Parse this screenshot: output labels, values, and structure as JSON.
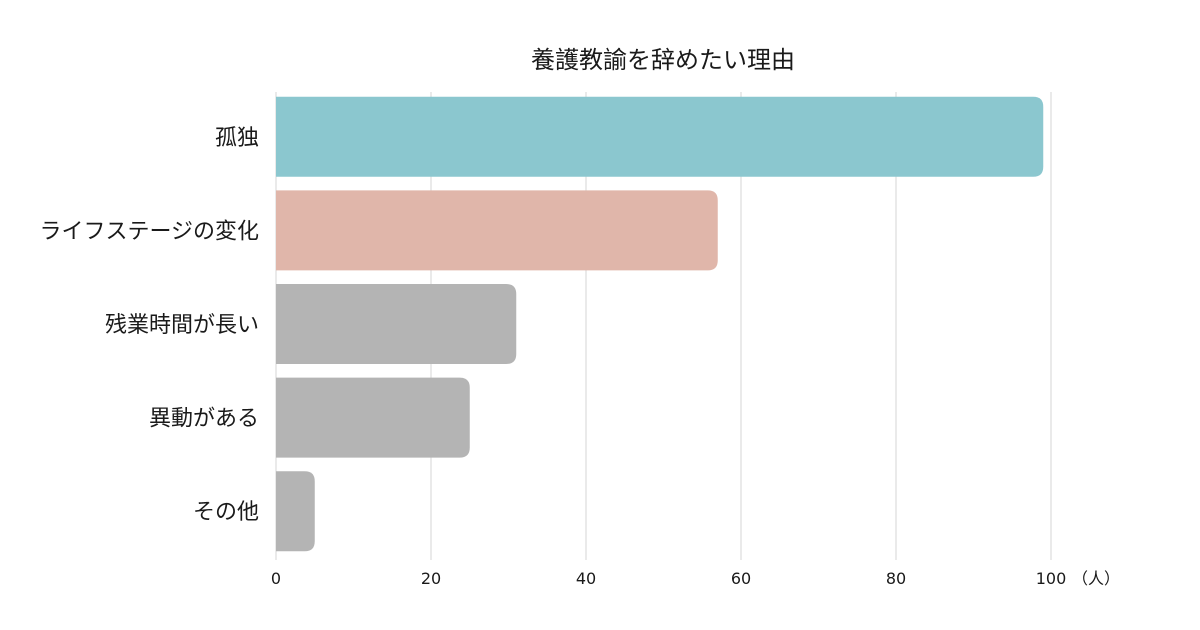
{
  "chart_data": {
    "type": "bar",
    "orientation": "horizontal",
    "title": "養護教諭を辞めたい理由",
    "categories": [
      "孤独",
      "ライフステージの変化",
      "残業時間が長い",
      "異動がある",
      "その他"
    ],
    "values": [
      99,
      57,
      31,
      25,
      5
    ],
    "colors": [
      "#8bc7cf",
      "#e0b6aa",
      "#b4b4b4",
      "#b4b4b4",
      "#b4b4b4"
    ],
    "xlim": [
      0,
      100
    ],
    "xticks": [
      0,
      20,
      40,
      60,
      80,
      100
    ],
    "unit_label": "（人）",
    "grid": true
  }
}
